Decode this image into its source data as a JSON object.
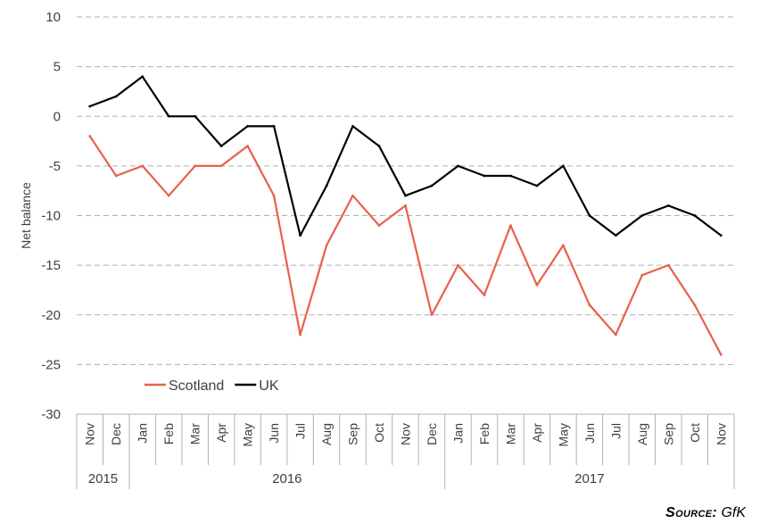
{
  "chart_data": {
    "type": "line",
    "ylabel": "Net balance",
    "ylim": [
      -30,
      10
    ],
    "yticks": [
      10,
      5,
      0,
      -5,
      -10,
      -15,
      -20,
      -25,
      -30
    ],
    "categories": [
      "Nov",
      "Dec",
      "Jan",
      "Feb",
      "Mar",
      "Apr",
      "May",
      "Jun",
      "Jul",
      "Aug",
      "Sep",
      "Oct",
      "Nov",
      "Dec",
      "Jan",
      "Feb",
      "Mar",
      "Apr",
      "May",
      "Jun",
      "Jul",
      "Aug",
      "Sep",
      "Oct",
      "Nov"
    ],
    "years": [
      {
        "label": "2015",
        "start": 0,
        "end": 1
      },
      {
        "label": "2016",
        "start": 2,
        "end": 13
      },
      {
        "label": "2017",
        "start": 14,
        "end": 24
      }
    ],
    "series": [
      {
        "name": "Scotland",
        "color": "#e8604c",
        "values": [
          -2,
          -6,
          -5,
          -8,
          -5,
          -5,
          -3,
          -8,
          -22,
          -13,
          -8,
          -11,
          -9,
          -20,
          -15,
          -18,
          -11,
          -17,
          -13,
          -19,
          -22,
          -16,
          -15,
          -19,
          -24
        ]
      },
      {
        "name": "UK",
        "color": "#000000",
        "values": [
          1,
          2,
          4,
          0,
          0,
          -3,
          -1,
          -1,
          -12,
          -7,
          -1,
          -3,
          -8,
          -7,
          -5,
          -6,
          -6,
          -7,
          -5,
          -10,
          -12,
          -10,
          -9,
          -10,
          -12
        ]
      }
    ],
    "legend_position": "lower-left",
    "grid": "horizontal dashed"
  },
  "source": {
    "label": "Source:",
    "value": "GfK"
  }
}
